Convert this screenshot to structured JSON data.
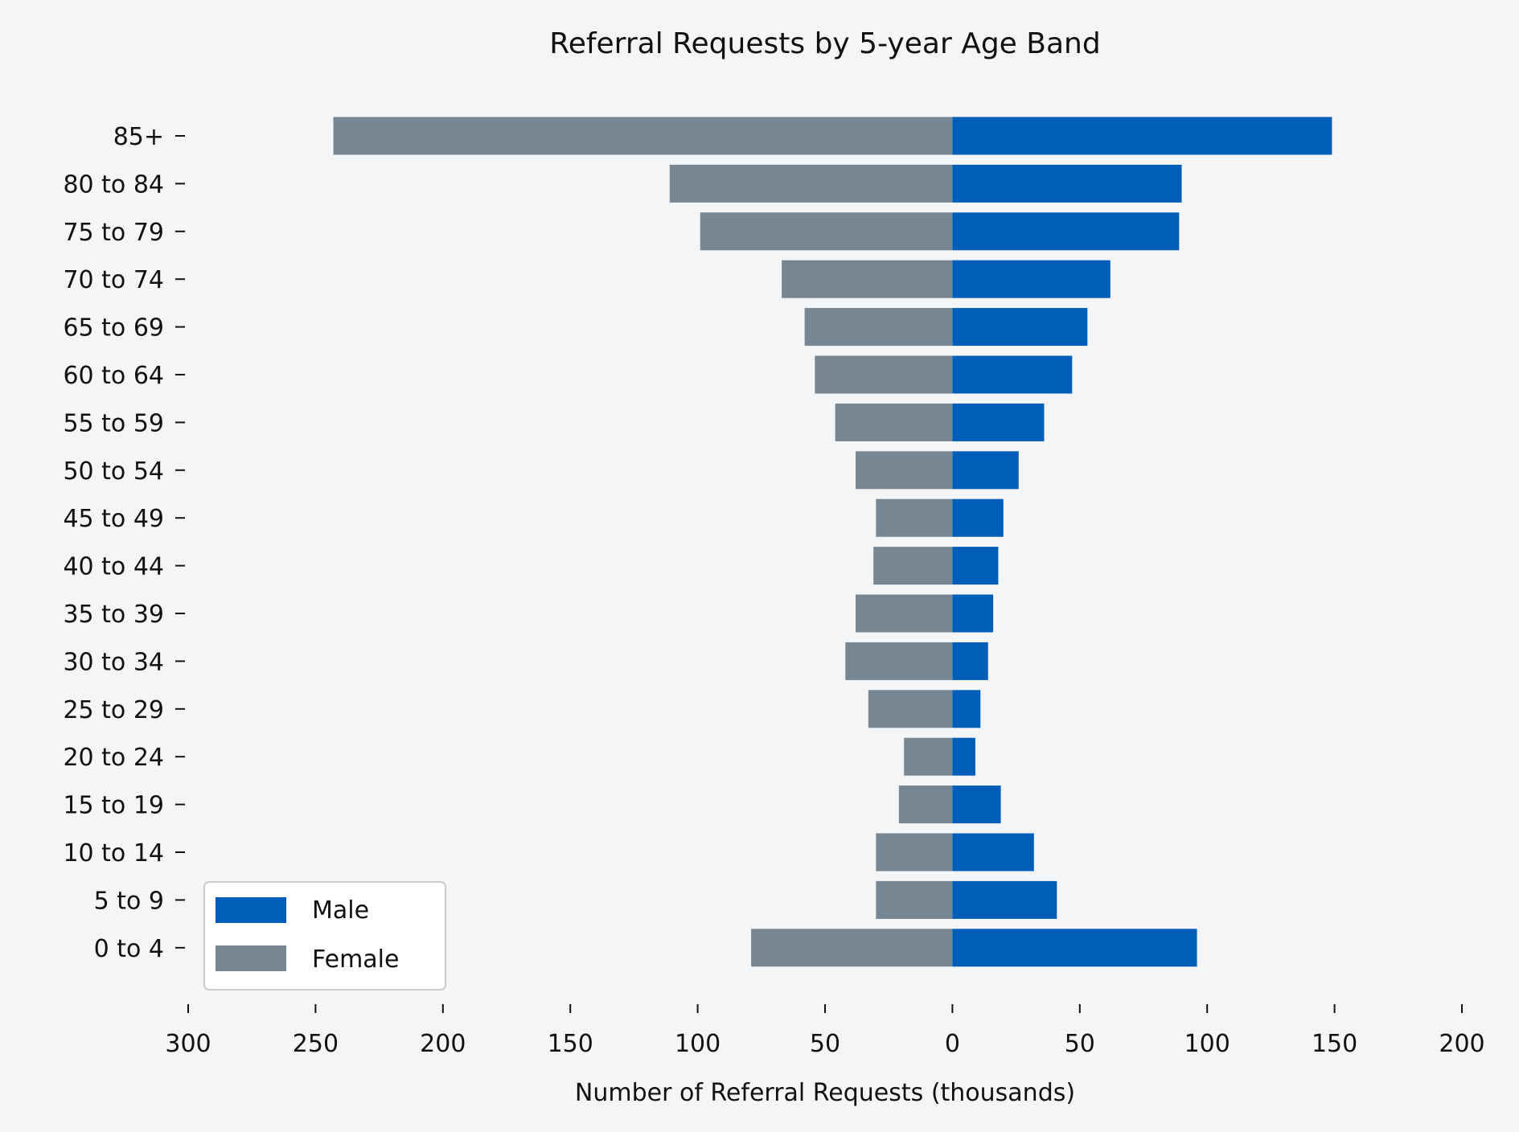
{
  "chart_data": {
    "type": "bar",
    "orientation": "horizontal",
    "title": "Referral Requests by 5-year Age Band",
    "xlabel": "Number of Referral Requests (thousands)",
    "ylabel": "",
    "xlim": [
      -300,
      200
    ],
    "xticks": [
      -300,
      -250,
      -200,
      -150,
      -100,
      -50,
      0,
      50,
      100,
      150,
      200
    ],
    "xtick_labels": [
      "300",
      "250",
      "200",
      "150",
      "100",
      "50",
      "0",
      "50",
      "100",
      "150",
      "200"
    ],
    "categories": [
      "85+",
      "80 to 84",
      "75 to 79",
      "70 to 74",
      "65 to 69",
      "60 to 64",
      "55 to 59",
      "50 to 54",
      "45 to 49",
      "40 to 44",
      "35 to 39",
      "30 to 34",
      "25 to 29",
      "20 to 24",
      "15 to 19",
      "10 to 14",
      "5 to 9",
      "0 to 4"
    ],
    "series": [
      {
        "name": "Male",
        "color": "#005EB8",
        "values": [
          149,
          90,
          89,
          62,
          53,
          47,
          36,
          26,
          20,
          18,
          16,
          14,
          11,
          9,
          19,
          32,
          41,
          96
        ]
      },
      {
        "name": "Female",
        "color": "#768692",
        "values": [
          -243,
          -111,
          -99,
          -67,
          -58,
          -54,
          -46,
          -38,
          -30,
          -31,
          -38,
          -42,
          -33,
          -19,
          -21,
          -30,
          -30,
          -79
        ]
      }
    ],
    "legend_position": "lower-left",
    "grid": false
  }
}
